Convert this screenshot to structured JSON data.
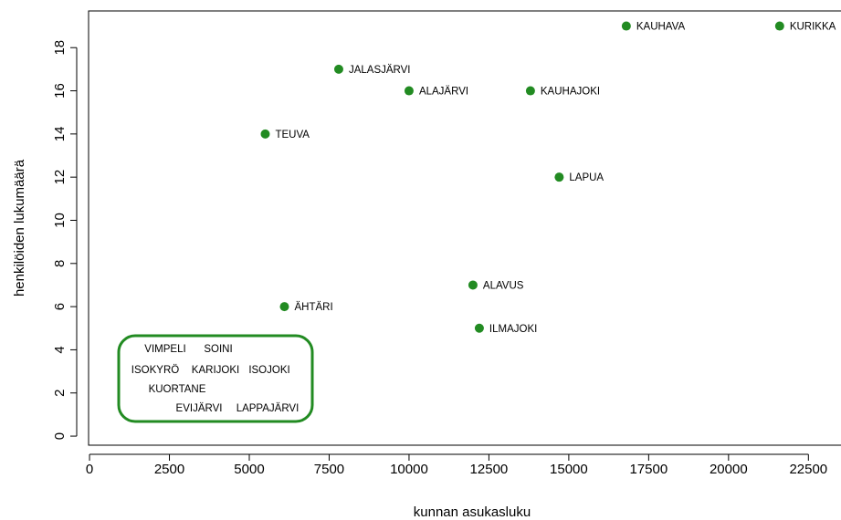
{
  "chart_data": {
    "type": "scatter",
    "x_label": "kunnan asukasluku",
    "y_label": "henkilöiden lukumäärä",
    "color": "#228b22",
    "x": [
      16800,
      21600,
      7800,
      10000,
      13800,
      5500,
      14700,
      12000,
      6100,
      12200
    ],
    "values": [
      19,
      19,
      17,
      16,
      16,
      14,
      12,
      7,
      6,
      5
    ],
    "point_labels": [
      "KAUHAVA",
      "KURIKKA",
      "JALASJÄRVI",
      "ALAJÄRVI",
      "KAUHAJOKI",
      "TEUVA",
      "LAPUA",
      "ALAVUS",
      "ÄHTÄRI",
      "ILMAJOKI"
    ],
    "box_labels": [
      "VIMPELI",
      "SOINI",
      "ISOKYRÖ",
      "KARIJOKI",
      "ISOJOKI",
      "KUORTANE",
      "EVIJÄRVI",
      "LAPPAJÄRVI"
    ],
    "xlim": [
      -30,
      23520
    ],
    "ylim": [
      -0.42,
      19.7
    ],
    "xticks": [
      0,
      2500,
      5000,
      7500,
      10000,
      12500,
      15000,
      17500,
      20000,
      22500
    ],
    "yticks": [
      0,
      2,
      4,
      6,
      8,
      10,
      12,
      14,
      16,
      18
    ]
  }
}
